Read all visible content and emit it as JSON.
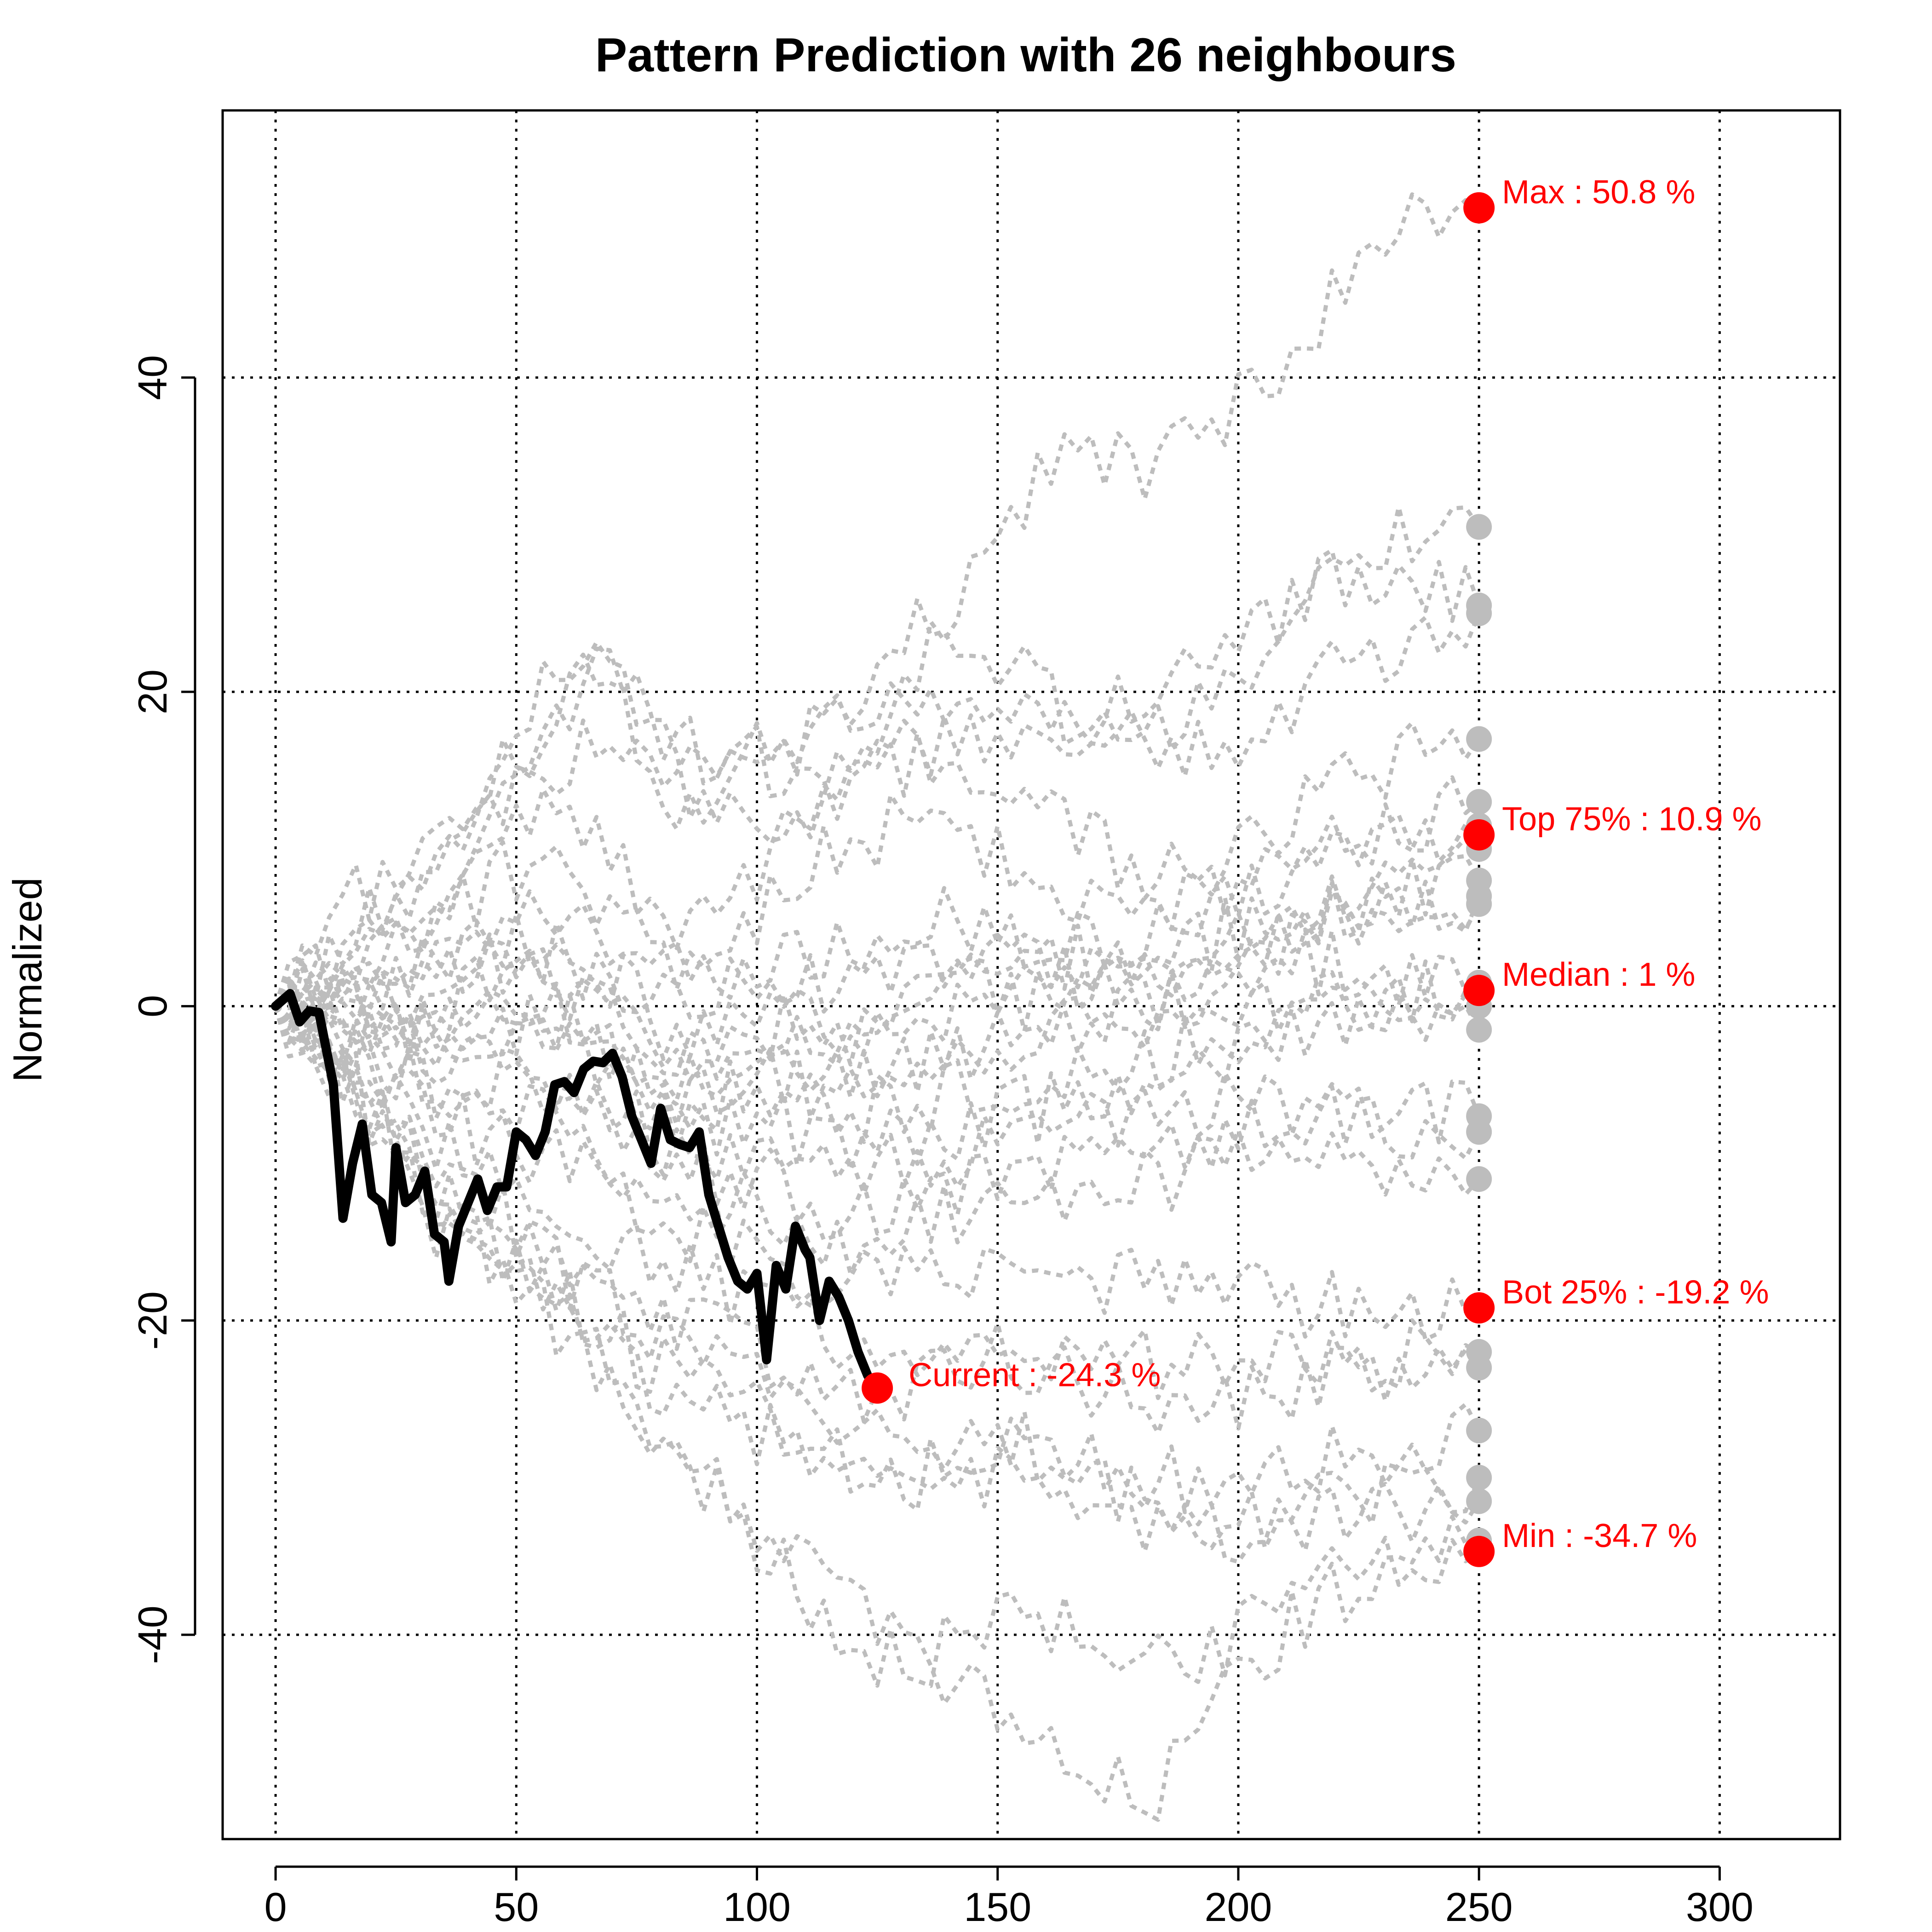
{
  "colors": {
    "neighbour": "#bdbdbd",
    "current": "#000000",
    "stat": "#ff0000"
  },
  "chart_data": {
    "type": "line",
    "title": "Pattern Prediction with 26 neighbours",
    "xlabel": "",
    "ylabel": "Normalized",
    "xlim": [
      -11,
      325
    ],
    "ylim": [
      -53,
      57
    ],
    "xticks": [
      0,
      50,
      100,
      150,
      200,
      250,
      300
    ],
    "xtick_labels": [
      "0",
      "50",
      "100",
      "150",
      "200",
      "250",
      "300"
    ],
    "yticks": [
      -40,
      -20,
      0,
      20,
      40
    ],
    "ytick_labels": [
      "-40",
      "-20",
      "0",
      "20",
      "40"
    ],
    "grid": true,
    "current_series": {
      "name": "Current",
      "x": [
        0,
        3,
        5,
        7,
        9,
        12,
        14,
        16,
        18,
        20,
        22,
        24,
        25,
        27,
        29,
        31,
        33,
        35,
        36,
        38,
        40,
        42,
        44,
        46,
        48,
        50,
        52,
        54,
        56,
        58,
        60,
        62,
        64,
        66,
        68,
        70,
        72,
        74,
        76,
        78,
        80,
        82,
        84,
        86,
        88,
        90,
        92,
        94,
        96,
        98,
        100,
        102,
        104,
        106,
        108,
        110,
        111,
        113,
        115,
        117,
        119,
        121,
        123,
        125
      ],
      "y": [
        0,
        0.8,
        -1,
        -0.3,
        -0.4,
        -5,
        -13.5,
        -10,
        -7.5,
        -12,
        -12.5,
        -15,
        -9,
        -12.5,
        -12,
        -10.5,
        -14.5,
        -15,
        -17.5,
        -14,
        -12.5,
        -11,
        -13,
        -11.5,
        -11.5,
        -8,
        -8.5,
        -9.5,
        -8,
        -5,
        -4.8,
        -5.5,
        -4,
        -3.5,
        -3.6,
        -3,
        -4.5,
        -7,
        -8.5,
        -10,
        -6.5,
        -8.5,
        -8.8,
        -9,
        -8,
        -12,
        -14,
        -16,
        -17.5,
        -18,
        -17,
        -22.5,
        -16.5,
        -18,
        -14,
        -15.5,
        -16,
        -20,
        -17.5,
        -18.5,
        -20,
        -22,
        -23.5,
        -24.3
      ],
      "end_label": "Current : -24.3 %",
      "end_value": -24.3
    },
    "neighbour_series": [
      {
        "name": "n1",
        "values": [
          0,
          7,
          9,
          18,
          24,
          15,
          10,
          14,
          21,
          30,
          36,
          34,
          38,
          44,
          50,
          50.8
        ]
      },
      {
        "name": "n2",
        "values": [
          0,
          3,
          6,
          14,
          22,
          17,
          14,
          19,
          24,
          22,
          18,
          17,
          20,
          26,
          30,
          30.5
        ]
      },
      {
        "name": "n3",
        "values": [
          0,
          2,
          8,
          13,
          18,
          15,
          16,
          13,
          17,
          16,
          17,
          21,
          23,
          27,
          28,
          25.5
        ]
      },
      {
        "name": "n4",
        "values": [
          0,
          5,
          11,
          16,
          21,
          12,
          16,
          18,
          20,
          19,
          19,
          16,
          17,
          21,
          23,
          25
        ]
      },
      {
        "name": "n5",
        "values": [
          0,
          4,
          6,
          12,
          11,
          5,
          9,
          13,
          16,
          15,
          11,
          8,
          10,
          13,
          16,
          17
        ]
      },
      {
        "name": "n6",
        "values": [
          0,
          3,
          5,
          9,
          7,
          3,
          6,
          10,
          12,
          10,
          7,
          6,
          8,
          10,
          11,
          13
        ]
      },
      {
        "name": "n7",
        "values": [
          0,
          2,
          4,
          6,
          5,
          2,
          3,
          4,
          6,
          4,
          3,
          5,
          7,
          9,
          10,
          11.5
        ]
      },
      {
        "name": "n8",
        "values": [
          0,
          1,
          3,
          5,
          2,
          0,
          2,
          1,
          3,
          1,
          -1,
          1,
          4,
          6,
          8,
          10
        ]
      },
      {
        "name": "n9",
        "values": [
          0,
          2,
          2,
          4,
          3,
          -2,
          0,
          -1,
          1,
          3,
          2,
          0,
          2,
          5,
          7,
          8
        ]
      },
      {
        "name": "n10",
        "values": [
          0,
          -1,
          1,
          3,
          1,
          -3,
          -1,
          -2,
          0,
          2,
          3,
          2,
          4,
          6,
          6,
          7
        ]
      },
      {
        "name": "n11",
        "values": [
          0,
          1,
          0,
          2,
          0,
          -4,
          -2,
          -3,
          -1,
          1,
          4,
          3,
          5,
          6,
          5,
          6.5
        ]
      },
      {
        "name": "n12",
        "values": [
          0,
          0,
          -1,
          1,
          -1,
          -5,
          -3,
          -5,
          -4,
          -2,
          0,
          2,
          1,
          3,
          2,
          1.5
        ]
      },
      {
        "name": "n13",
        "values": [
          0,
          -1,
          -2,
          0,
          -2,
          -6,
          -4,
          -6,
          -5,
          -3,
          -1,
          -2,
          -1,
          0,
          1,
          1
        ]
      },
      {
        "name": "n14",
        "values": [
          0,
          1,
          -1,
          -2,
          -3,
          -7,
          -5,
          -7,
          -6,
          -5,
          -4,
          -3,
          -2,
          -1,
          0,
          0
        ]
      },
      {
        "name": "n15",
        "values": [
          0,
          -2,
          -3,
          -1,
          -4,
          -8,
          -7,
          -9,
          -8,
          -7,
          -6,
          -4,
          -3,
          -2,
          -1,
          -1.5
        ]
      },
      {
        "name": "n16",
        "values": [
          0,
          -1,
          -4,
          -3,
          -6,
          -9,
          -9,
          -11,
          -10,
          -9,
          -8,
          -7,
          -6,
          -7,
          -7,
          -7
        ]
      },
      {
        "name": "n17",
        "values": [
          0,
          -3,
          -5,
          -4,
          -7,
          -10,
          -11,
          -13,
          -12,
          -11,
          -10,
          -9,
          -8,
          -7,
          -8,
          -8
        ]
      },
      {
        "name": "n18",
        "values": [
          0,
          -2,
          -6,
          -6,
          -9,
          -12,
          -13,
          -15,
          -14,
          -13,
          -12,
          -11,
          -10,
          -10,
          -11,
          -11
        ]
      },
      {
        "name": "n19",
        "values": [
          0,
          -3,
          -7,
          -9,
          -11,
          -14,
          -16,
          -18,
          -17,
          -16,
          -17,
          -18,
          -18,
          -19,
          -19,
          -19.2
        ]
      },
      {
        "name": "n20",
        "values": [
          0,
          -4,
          -9,
          -12,
          -14,
          -17,
          -19,
          -21,
          -22,
          -21,
          -22,
          -23,
          -22,
          -23,
          -22,
          -22
        ]
      },
      {
        "name": "n21",
        "values": [
          0,
          -5,
          -10,
          -14,
          -17,
          -20,
          -22,
          -25,
          -24,
          -22,
          -24,
          -26,
          -25,
          -24,
          -23,
          -23
        ]
      },
      {
        "name": "n22",
        "values": [
          0,
          -4,
          -11,
          -15,
          -18,
          -22,
          -24,
          -27,
          -28,
          -27,
          -29,
          -30,
          -31,
          -29,
          -28,
          -27
        ]
      },
      {
        "name": "n23",
        "values": [
          0,
          -6,
          -12,
          -16,
          -20,
          -24,
          -26,
          -29,
          -30,
          -28,
          -30,
          -32,
          -33,
          -32,
          -31,
          -30
        ]
      },
      {
        "name": "n24",
        "values": [
          0,
          -5,
          -13,
          -17,
          -21,
          -25,
          -27,
          -30,
          -31,
          -30,
          -32,
          -33,
          -34,
          -33,
          -32,
          -31.5
        ]
      },
      {
        "name": "n25",
        "values": [
          0,
          -6,
          -12,
          -16,
          -22,
          -28,
          -34,
          -40,
          -42,
          -38,
          -40,
          -42,
          -40,
          -37,
          -35,
          -34.7
        ]
      },
      {
        "name": "n26",
        "values": [
          0,
          -5,
          -14,
          -18,
          -23,
          -28,
          -33,
          -38,
          -42,
          -45,
          -48,
          -50,
          -42,
          -38,
          -36,
          -34
        ]
      }
    ],
    "neighbour_x": [
      0,
      16.67,
      33.33,
      50,
      66.67,
      83.33,
      100,
      116.67,
      133.33,
      150,
      166.67,
      183.33,
      200,
      216.67,
      233.33,
      250
    ],
    "stats_x": 250,
    "stats": [
      {
        "label": "Max : 50.8 %",
        "value": 50.8
      },
      {
        "label": "Top 75% : 10.9 %",
        "value": 10.9
      },
      {
        "label": "Median : 1 %",
        "value": 1
      },
      {
        "label": "Bot 25% : -19.2 %",
        "value": -19.2
      },
      {
        "label": "Min : -34.7 %",
        "value": -34.7
      }
    ]
  }
}
